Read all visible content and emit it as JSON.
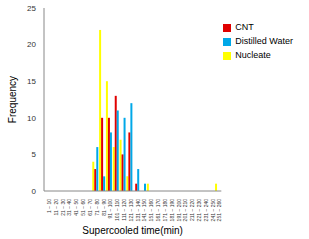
{
  "chart_data": {
    "type": "bar",
    "x_label": "Supercooled time(min)",
    "y_label": "Frequency",
    "categories": [
      "1 ~ 10",
      "11 ~ 20",
      "21 ~ 30",
      "31 ~ 40",
      "41 ~ 50",
      "51 ~ 60",
      "61 ~ 70",
      "71 ~ 80",
      "81 ~ 90",
      "91 ~ 100",
      "101 ~ 110",
      "111 ~ 120",
      "121 ~ 130",
      "131 ~ 140",
      "141 ~ 150",
      "151 ~ 160",
      "161 ~ 170",
      "171 ~ 180",
      "181 ~ 190",
      "191 ~ 200",
      "201 ~ 210",
      "211 ~ 220",
      "221 ~ 230",
      "231 ~ 240",
      "241 ~ 250",
      "251 ~ 260"
    ],
    "series": [
      {
        "name": "Nucleate",
        "color": "#ffff00",
        "values": [
          0,
          0,
          0,
          0,
          0,
          0,
          0,
          4,
          22,
          15,
          6,
          7,
          2,
          0,
          0,
          1,
          0,
          0,
          0,
          0,
          0,
          0,
          0,
          0,
          0,
          1
        ]
      },
      {
        "name": "CNT",
        "color": "#e00000",
        "values": [
          0,
          0,
          0,
          0,
          0,
          0,
          0,
          3,
          10,
          10,
          13,
          5,
          8,
          1,
          0,
          0,
          0,
          0,
          0,
          0,
          0,
          0,
          0,
          0,
          0,
          0
        ]
      },
      {
        "name": "Distilled Water",
        "color": "#00a8e8",
        "values": [
          0,
          0,
          0,
          0,
          0,
          0,
          0,
          6,
          2,
          8,
          11,
          10,
          12,
          3,
          1,
          0,
          0,
          0,
          0,
          0,
          0,
          0,
          0,
          0,
          0,
          0
        ]
      }
    ],
    "ylim": [
      0,
      25
    ],
    "yticks": [
      0,
      5,
      10,
      15,
      20,
      25
    ],
    "grid": false,
    "legend": "upper right"
  }
}
